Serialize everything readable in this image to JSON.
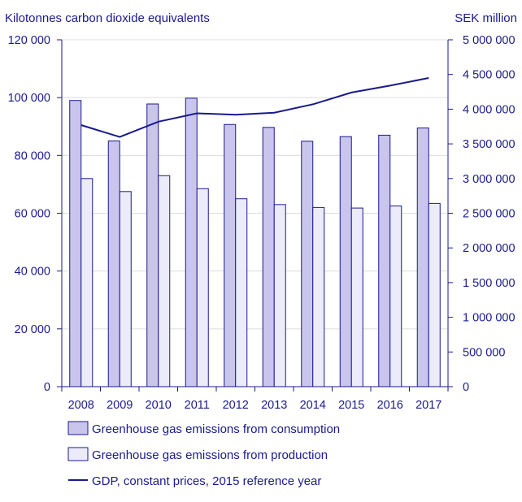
{
  "chart_data": {
    "type": "bar",
    "categories": [
      "2008",
      "2009",
      "2010",
      "2011",
      "2012",
      "2013",
      "2014",
      "2015",
      "2016",
      "2017"
    ],
    "ylabel_left": "Kilotonnes carbon dioxide equivalents",
    "ylabel_right": "SEK million",
    "ylim_left": [
      0,
      120000
    ],
    "ylim_right": [
      0,
      5000000
    ],
    "yticks_left": [
      "0",
      "20 000",
      "40 000",
      "60 000",
      "80 000",
      "100 000",
      "120 000"
    ],
    "yticks_right": [
      "0",
      "500 000",
      "1 000 000",
      "1 500 000",
      "2 000 000",
      "2 500 000",
      "3 000 000",
      "3 500 000",
      "4 000 000",
      "4 500 000",
      "5 000 000"
    ],
    "grid": true,
    "legend_position": "bottom",
    "series": [
      {
        "name": "Greenhouse gas emissions from consumption",
        "type": "bar",
        "axis": "left",
        "color": "#c9c5ec",
        "values": [
          99000,
          85000,
          97800,
          99800,
          90700,
          89700,
          84900,
          86500,
          87000,
          89500
        ]
      },
      {
        "name": "Greenhouse gas emissions from production",
        "type": "bar",
        "axis": "left",
        "color": "#ecebf9",
        "values": [
          72000,
          67500,
          73000,
          68500,
          65000,
          63000,
          62000,
          61800,
          62500,
          63400
        ]
      },
      {
        "name": "GDP, constant prices, 2015 reference year",
        "type": "line",
        "axis": "right",
        "color": "#1a1a8c",
        "values": [
          3770000,
          3600000,
          3820000,
          3940000,
          3920000,
          3950000,
          4070000,
          4240000,
          4340000,
          4450000
        ]
      }
    ]
  },
  "colors": {
    "axis": "#1a1a8c",
    "grid": "#dcdcdc",
    "bar_stroke": "#1a1a8c"
  }
}
